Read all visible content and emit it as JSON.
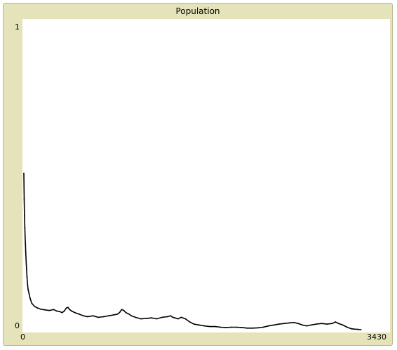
{
  "plot": {
    "title": "Population",
    "background_color": "#e5e3b9",
    "line_color": "#000000"
  },
  "chart_data": {
    "type": "line",
    "title": "Population",
    "xlabel": "",
    "ylabel": "",
    "xlim": [
      0,
      3430
    ],
    "ylim": [
      0,
      1
    ],
    "x_tick_labels": [
      "0",
      "3430"
    ],
    "y_tick_labels": [
      "0",
      "1"
    ],
    "grid": false,
    "series": [
      {
        "values": [
          [
            0,
            0.505
          ],
          [
            3,
            0.42
          ],
          [
            6,
            0.368
          ],
          [
            9,
            0.33
          ],
          [
            12,
            0.3
          ],
          [
            15,
            0.275
          ],
          [
            18,
            0.25
          ],
          [
            22,
            0.22
          ],
          [
            26,
            0.195
          ],
          [
            30,
            0.17
          ],
          [
            35,
            0.145
          ],
          [
            40,
            0.13
          ],
          [
            50,
            0.115
          ],
          [
            60,
            0.1
          ],
          [
            75,
            0.085
          ],
          [
            100,
            0.075
          ],
          [
            130,
            0.07
          ],
          [
            160,
            0.066
          ],
          [
            200,
            0.064
          ],
          [
            240,
            0.062
          ],
          [
            280,
            0.065
          ],
          [
            310,
            0.06
          ],
          [
            340,
            0.058
          ],
          [
            360,
            0.055
          ],
          [
            380,
            0.06
          ],
          [
            400,
            0.07
          ],
          [
            415,
            0.072
          ],
          [
            430,
            0.065
          ],
          [
            450,
            0.06
          ],
          [
            480,
            0.055
          ],
          [
            520,
            0.05
          ],
          [
            560,
            0.045
          ],
          [
            600,
            0.042
          ],
          [
            650,
            0.045
          ],
          [
            700,
            0.04
          ],
          [
            750,
            0.042
          ],
          [
            800,
            0.045
          ],
          [
            850,
            0.048
          ],
          [
            880,
            0.05
          ],
          [
            900,
            0.055
          ],
          [
            920,
            0.065
          ],
          [
            940,
            0.062
          ],
          [
            960,
            0.055
          ],
          [
            990,
            0.05
          ],
          [
            1010,
            0.045
          ],
          [
            1050,
            0.04
          ],
          [
            1100,
            0.035
          ],
          [
            1150,
            0.036
          ],
          [
            1200,
            0.038
          ],
          [
            1250,
            0.035
          ],
          [
            1300,
            0.04
          ],
          [
            1350,
            0.042
          ],
          [
            1380,
            0.045
          ],
          [
            1400,
            0.04
          ],
          [
            1420,
            0.038
          ],
          [
            1450,
            0.035
          ],
          [
            1480,
            0.04
          ],
          [
            1520,
            0.035
          ],
          [
            1560,
            0.025
          ],
          [
            1600,
            0.018
          ],
          [
            1650,
            0.015
          ],
          [
            1700,
            0.012
          ],
          [
            1750,
            0.01
          ],
          [
            1800,
            0.01
          ],
          [
            1850,
            0.008
          ],
          [
            1900,
            0.007
          ],
          [
            1950,
            0.008
          ],
          [
            2000,
            0.008
          ],
          [
            2050,
            0.007
          ],
          [
            2100,
            0.005
          ],
          [
            2150,
            0.005
          ],
          [
            2200,
            0.006
          ],
          [
            2250,
            0.008
          ],
          [
            2300,
            0.012
          ],
          [
            2350,
            0.015
          ],
          [
            2400,
            0.018
          ],
          [
            2450,
            0.02
          ],
          [
            2500,
            0.022
          ],
          [
            2540,
            0.023
          ],
          [
            2580,
            0.02
          ],
          [
            2620,
            0.015
          ],
          [
            2660,
            0.012
          ],
          [
            2700,
            0.015
          ],
          [
            2750,
            0.018
          ],
          [
            2800,
            0.02
          ],
          [
            2850,
            0.018
          ],
          [
            2900,
            0.02
          ],
          [
            2930,
            0.025
          ],
          [
            2960,
            0.02
          ],
          [
            3000,
            0.015
          ],
          [
            3040,
            0.008
          ],
          [
            3080,
            0.003
          ],
          [
            3100,
            0.002
          ],
          [
            3140,
            0.001
          ],
          [
            3170,
            0.0
          ]
        ]
      }
    ]
  }
}
